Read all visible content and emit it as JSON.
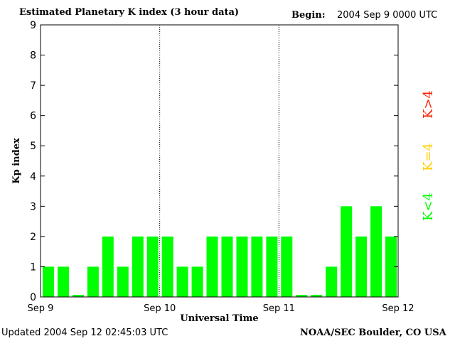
{
  "header": {
    "title": "Estimated Planetary K index (3 hour data)",
    "begin_label": "Begin:",
    "begin_value": "2004 Sep 9 0000 UTC"
  },
  "footer": {
    "updated_label": "Updated",
    "updated_value": "2004 Sep 12 02:45:03 UTC",
    "source": "NOAA/SEC Boulder, CO USA"
  },
  "legend": {
    "high": "K>4",
    "mid": "K=4",
    "low": "K<4"
  },
  "colors": {
    "low": "#00ff00",
    "mid": "#ffd000",
    "high": "#ff2000",
    "divider": "#000000"
  },
  "chart_data": {
    "type": "bar",
    "title": "Estimated Planetary K index (3 hour data)",
    "xlabel": "Universal Time",
    "ylabel": "Kp index",
    "ylim": [
      0,
      9
    ],
    "yticks": [
      0,
      1,
      2,
      3,
      4,
      5,
      6,
      7,
      8,
      9
    ],
    "xtick_labels": [
      "Sep 9",
      "Sep 10",
      "Sep 11",
      "Sep 12"
    ],
    "grid": false,
    "day_dividers": [
      "Sep 10",
      "Sep 11"
    ],
    "values": [
      1,
      1,
      0,
      1,
      2,
      1,
      2,
      2,
      2,
      1,
      1,
      2,
      2,
      2,
      2,
      2,
      2,
      0,
      0,
      1,
      3,
      2,
      3,
      2
    ]
  }
}
